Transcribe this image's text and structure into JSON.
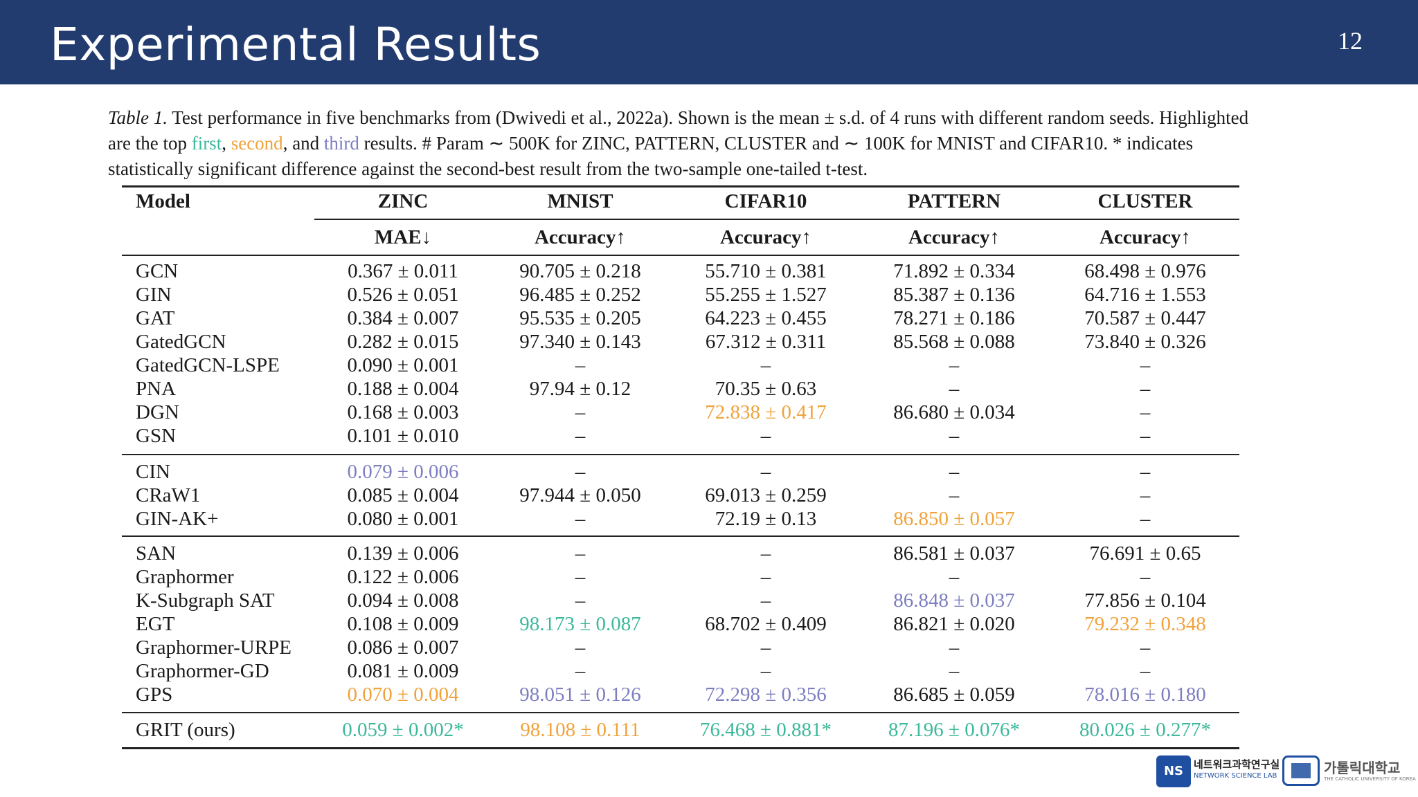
{
  "slide": {
    "title": "Experimental Results",
    "number": "12"
  },
  "colors": {
    "header_bg": "#233c6f",
    "first": "#3cb89a",
    "second": "#f0a23a",
    "third": "#7d7ec0"
  },
  "caption": {
    "table_label": "Table 1.",
    "part1": " Test performance in five benchmarks from (Dwivedi et al., 2022a). Shown is the mean ± s.d. of 4 runs with different random seeds. Highlighted are the top ",
    "first": "first",
    "sep1": ", ",
    "second": "second",
    "sep2": ", and ",
    "third": "third",
    "part2": " results. # Param ∼ 500K for ZINC, PATTERN, CLUSTER and ∼ 100K for MNIST and CIFAR10. * indicates statistically significant difference against the second-best result from the two-sample one-tailed t-test."
  },
  "table": {
    "model_header": "Model",
    "datasets": [
      "ZINC",
      "MNIST",
      "CIFAR10",
      "PATTERN",
      "CLUSTER"
    ],
    "metrics": [
      "MAE↓",
      "Accuracy↑",
      "Accuracy↑",
      "Accuracy↑",
      "Accuracy↑"
    ],
    "groups": [
      [
        {
          "model": "GCN",
          "values": [
            [
              "0.367 ± 0.011",
              ""
            ],
            [
              "90.705 ± 0.218",
              ""
            ],
            [
              "55.710 ± 0.381",
              ""
            ],
            [
              "71.892 ± 0.334",
              ""
            ],
            [
              "68.498 ± 0.976",
              ""
            ]
          ]
        },
        {
          "model": "GIN",
          "values": [
            [
              "0.526 ± 0.051",
              ""
            ],
            [
              "96.485 ± 0.252",
              ""
            ],
            [
              "55.255 ± 1.527",
              ""
            ],
            [
              "85.387 ± 0.136",
              ""
            ],
            [
              "64.716 ± 1.553",
              ""
            ]
          ]
        },
        {
          "model": "GAT",
          "values": [
            [
              "0.384 ± 0.007",
              ""
            ],
            [
              "95.535 ± 0.205",
              ""
            ],
            [
              "64.223 ± 0.455",
              ""
            ],
            [
              "78.271 ± 0.186",
              ""
            ],
            [
              "70.587 ± 0.447",
              ""
            ]
          ]
        },
        {
          "model": "GatedGCN",
          "values": [
            [
              "0.282 ± 0.015",
              ""
            ],
            [
              "97.340 ± 0.143",
              ""
            ],
            [
              "67.312 ± 0.311",
              ""
            ],
            [
              "85.568 ± 0.088",
              ""
            ],
            [
              "73.840 ± 0.326",
              ""
            ]
          ]
        },
        {
          "model": "GatedGCN-LSPE",
          "values": [
            [
              "0.090 ± 0.001",
              ""
            ],
            [
              "–",
              ""
            ],
            [
              "–",
              ""
            ],
            [
              "–",
              ""
            ],
            [
              "–",
              ""
            ]
          ]
        },
        {
          "model": "PNA",
          "values": [
            [
              "0.188 ± 0.004",
              ""
            ],
            [
              "97.94 ± 0.12",
              ""
            ],
            [
              "70.35 ± 0.63",
              ""
            ],
            [
              "–",
              ""
            ],
            [
              "–",
              ""
            ]
          ]
        },
        {
          "model": "DGN",
          "values": [
            [
              "0.168 ± 0.003",
              ""
            ],
            [
              "–",
              ""
            ],
            [
              "72.838 ± 0.417",
              "second"
            ],
            [
              "86.680 ± 0.034",
              ""
            ],
            [
              "–",
              ""
            ]
          ]
        },
        {
          "model": "GSN",
          "values": [
            [
              "0.101 ± 0.010",
              ""
            ],
            [
              "–",
              ""
            ],
            [
              "–",
              ""
            ],
            [
              "–",
              ""
            ],
            [
              "–",
              ""
            ]
          ]
        }
      ],
      [
        {
          "model": "CIN",
          "values": [
            [
              "0.079 ± 0.006",
              "third"
            ],
            [
              "–",
              ""
            ],
            [
              "–",
              ""
            ],
            [
              "–",
              ""
            ],
            [
              "–",
              ""
            ]
          ]
        },
        {
          "model": "CRaW1",
          "values": [
            [
              "0.085 ± 0.004",
              ""
            ],
            [
              "97.944 ± 0.050",
              ""
            ],
            [
              "69.013 ± 0.259",
              ""
            ],
            [
              "–",
              ""
            ],
            [
              "–",
              ""
            ]
          ]
        },
        {
          "model": "GIN-AK+",
          "values": [
            [
              "0.080 ± 0.001",
              ""
            ],
            [
              "–",
              ""
            ],
            [
              "72.19 ± 0.13",
              ""
            ],
            [
              "86.850 ± 0.057",
              "second"
            ],
            [
              "–",
              ""
            ]
          ]
        }
      ],
      [
        {
          "model": "SAN",
          "values": [
            [
              "0.139 ± 0.006",
              ""
            ],
            [
              "–",
              ""
            ],
            [
              "–",
              ""
            ],
            [
              "86.581 ± 0.037",
              ""
            ],
            [
              "76.691 ± 0.65",
              ""
            ]
          ]
        },
        {
          "model": "Graphormer",
          "values": [
            [
              "0.122 ± 0.006",
              ""
            ],
            [
              "–",
              ""
            ],
            [
              "–",
              ""
            ],
            [
              "–",
              ""
            ],
            [
              "–",
              ""
            ]
          ]
        },
        {
          "model": "K-Subgraph SAT",
          "values": [
            [
              "0.094 ± 0.008",
              ""
            ],
            [
              "–",
              ""
            ],
            [
              "–",
              ""
            ],
            [
              "86.848 ± 0.037",
              "third"
            ],
            [
              "77.856 ± 0.104",
              ""
            ]
          ]
        },
        {
          "model": "EGT",
          "values": [
            [
              "0.108 ± 0.009",
              ""
            ],
            [
              "98.173 ± 0.087",
              "first"
            ],
            [
              "68.702 ± 0.409",
              ""
            ],
            [
              "86.821 ± 0.020",
              ""
            ],
            [
              "79.232 ± 0.348",
              "second"
            ]
          ]
        },
        {
          "model": "Graphormer-URPE",
          "values": [
            [
              "0.086 ± 0.007",
              ""
            ],
            [
              "–",
              ""
            ],
            [
              "–",
              ""
            ],
            [
              "–",
              ""
            ],
            [
              "–",
              ""
            ]
          ]
        },
        {
          "model": "Graphormer-GD",
          "values": [
            [
              "0.081 ± 0.009",
              ""
            ],
            [
              "–",
              ""
            ],
            [
              "–",
              ""
            ],
            [
              "–",
              ""
            ],
            [
              "–",
              ""
            ]
          ]
        },
        {
          "model": "GPS",
          "values": [
            [
              "0.070 ± 0.004",
              "second"
            ],
            [
              "98.051 ± 0.126",
              "third"
            ],
            [
              "72.298 ± 0.356",
              "third"
            ],
            [
              "86.685 ± 0.059",
              ""
            ],
            [
              "78.016 ± 0.180",
              "third"
            ]
          ]
        }
      ],
      [
        {
          "model": "GRIT (ours)",
          "values": [
            [
              "0.059 ± 0.002*",
              "first"
            ],
            [
              "98.108 ± 0.111",
              "second"
            ],
            [
              "76.468 ± 0.881*",
              "first"
            ],
            [
              "87.196 ± 0.076*",
              "first"
            ],
            [
              "80.026 ± 0.277*",
              "first"
            ]
          ]
        }
      ]
    ]
  },
  "logos": {
    "lab_mark": "NS",
    "lab_name_ko": "네트워크과학연구실",
    "lab_name_en": "NETWORK SCIENCE LAB",
    "univ_name_ko": "가톨릭대학교",
    "univ_name_en": "THE CATHOLIC UNIVERSITY OF KOREA"
  }
}
